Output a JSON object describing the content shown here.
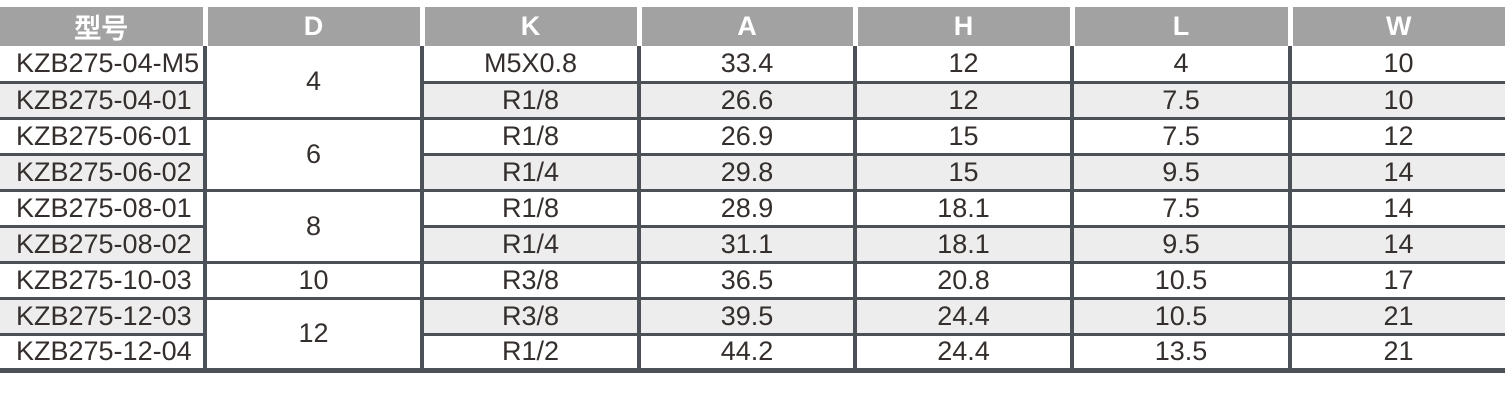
{
  "table": {
    "headers": [
      "型号",
      "D",
      "K",
      "A",
      "H",
      "L",
      "W"
    ],
    "groups": [
      {
        "d": "4",
        "rows": [
          {
            "model": "KZB275-04-M5",
            "k": "M5X0.8",
            "a": "33.4",
            "h": "12",
            "l": "4",
            "w": "10"
          },
          {
            "model": "KZB275-04-01",
            "k": "R1/8",
            "a": "26.6",
            "h": "12",
            "l": "7.5",
            "w": "10"
          }
        ]
      },
      {
        "d": "6",
        "rows": [
          {
            "model": "KZB275-06-01",
            "k": "R1/8",
            "a": "26.9",
            "h": "15",
            "l": "7.5",
            "w": "12"
          },
          {
            "model": "KZB275-06-02",
            "k": "R1/4",
            "a": "29.8",
            "h": "15",
            "l": "9.5",
            "w": "14"
          }
        ]
      },
      {
        "d": "8",
        "rows": [
          {
            "model": "KZB275-08-01",
            "k": "R1/8",
            "a": "28.9",
            "h": "18.1",
            "l": "7.5",
            "w": "14"
          },
          {
            "model": "KZB275-08-02",
            "k": "R1/4",
            "a": "31.1",
            "h": "18.1",
            "l": "9.5",
            "w": "14"
          }
        ]
      },
      {
        "d": "10",
        "rows": [
          {
            "model": "KZB275-10-03",
            "k": "R3/8",
            "a": "36.5",
            "h": "20.8",
            "l": "10.5",
            "w": "17"
          }
        ]
      },
      {
        "d": "12",
        "rows": [
          {
            "model": "KZB275-12-03",
            "k": "R3/8",
            "a": "39.5",
            "h": "24.4",
            "l": "10.5",
            "w": "21"
          },
          {
            "model": "KZB275-12-04",
            "k": "R1/2",
            "a": "44.2",
            "h": "24.4",
            "l": "13.5",
            "w": "21"
          }
        ]
      }
    ],
    "colors": {
      "header_bg": "#a2a2a2",
      "header_text": "#ffffff",
      "row_alt_bg": "#ededed",
      "border_dark": "#4b5157",
      "cell_text": "#342e2c"
    }
  }
}
